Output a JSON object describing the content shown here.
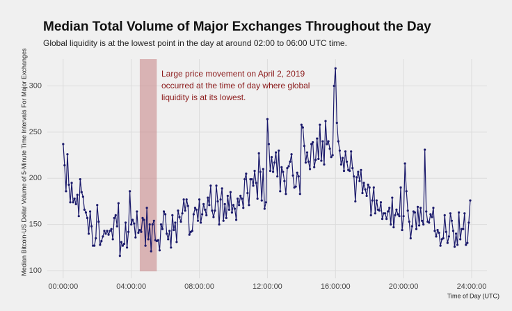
{
  "chart_data": {
    "type": "line",
    "title": "Median Total Volume of Major Exchanges Throughout the Day",
    "subtitle": "Global liquidity is at the lowest point in the day at around 02:00 to 06:00 UTC time.",
    "x_label": "Time of Day (UTC)",
    "y_label": "Median Bitcoin-US Dollar Volume of 5-Minute Time Intervals For Major Exchanges",
    "annotation": [
      "Large price movement on April 2, 2019",
      "occurred at the time of day where global",
      "liquidity is at its lowest."
    ],
    "highlight": [
      270,
      330
    ],
    "highlight_color": "#c98a8c",
    "annotation_color": "#8b1a1a",
    "grid": true,
    "xlim": [
      -56,
      1494
    ],
    "ylim": [
      91.7,
      329
    ],
    "xticks": [
      {
        "value": 0,
        "label": "00:00:00"
      },
      {
        "value": 240,
        "label": "04:00:00"
      },
      {
        "value": 480,
        "label": "08:00:00"
      },
      {
        "value": 720,
        "label": "12:00:00"
      },
      {
        "value": 960,
        "label": "16:00:00"
      },
      {
        "value": 1200,
        "label": "20:00:00"
      },
      {
        "value": 1440,
        "label": "24:00:00"
      }
    ],
    "yticks": [
      100,
      150,
      200,
      250,
      300
    ],
    "series": [
      {
        "name": "Median volume",
        "color": "#1b1a6b",
        "x": [
          0,
          5,
          10,
          15,
          20,
          25,
          30,
          35,
          40,
          45,
          50,
          55,
          60,
          65,
          70,
          75,
          80,
          85,
          90,
          95,
          100,
          105,
          110,
          115,
          120,
          125,
          130,
          135,
          140,
          145,
          150,
          155,
          160,
          165,
          170,
          175,
          180,
          185,
          190,
          195,
          200,
          205,
          210,
          215,
          220,
          225,
          230,
          235,
          240,
          245,
          250,
          255,
          260,
          265,
          270,
          275,
          280,
          285,
          290,
          295,
          300,
          305,
          310,
          315,
          320,
          325,
          330,
          335,
          340,
          345,
          350,
          355,
          360,
          365,
          370,
          375,
          380,
          385,
          390,
          395,
          400,
          405,
          410,
          415,
          420,
          425,
          430,
          435,
          440,
          445,
          450,
          455,
          460,
          465,
          470,
          475,
          480,
          485,
          490,
          495,
          500,
          505,
          510,
          515,
          520,
          525,
          530,
          535,
          540,
          545,
          550,
          555,
          560,
          565,
          570,
          575,
          580,
          585,
          590,
          595,
          600,
          605,
          610,
          615,
          620,
          625,
          630,
          635,
          640,
          645,
          650,
          655,
          660,
          665,
          670,
          675,
          680,
          685,
          690,
          695,
          700,
          705,
          710,
          715,
          720,
          725,
          730,
          735,
          740,
          745,
          750,
          755,
          760,
          765,
          770,
          775,
          780,
          785,
          790,
          795,
          800,
          805,
          810,
          815,
          820,
          825,
          830,
          835,
          840,
          845,
          850,
          855,
          860,
          865,
          870,
          875,
          880,
          885,
          890,
          895,
          900,
          905,
          910,
          915,
          920,
          925,
          930,
          935,
          940,
          945,
          950,
          955,
          960,
          965,
          970,
          975,
          980,
          985,
          990,
          995,
          1000,
          1005,
          1010,
          1015,
          1020,
          1025,
          1030,
          1035,
          1040,
          1045,
          1050,
          1055,
          1060,
          1065,
          1070,
          1075,
          1080,
          1085,
          1090,
          1095,
          1100,
          1105,
          1110,
          1115,
          1120,
          1125,
          1130,
          1135,
          1140,
          1145,
          1150,
          1155,
          1160,
          1165,
          1170,
          1175,
          1180,
          1185,
          1190,
          1195,
          1200,
          1205,
          1210,
          1215,
          1220,
          1225,
          1230,
          1235,
          1240,
          1245,
          1250,
          1255,
          1260,
          1265,
          1270,
          1275,
          1280,
          1285,
          1290,
          1295,
          1300,
          1305,
          1310,
          1315,
          1320,
          1325,
          1330,
          1335,
          1340,
          1345,
          1350,
          1355,
          1360,
          1365,
          1370,
          1375,
          1380,
          1385,
          1390,
          1395,
          1400,
          1405,
          1410,
          1415,
          1420,
          1425,
          1430,
          1435
        ],
        "values": [
          237,
          214,
          186,
          226,
          193,
          174,
          195,
          174,
          178,
          172,
          182,
          159,
          199,
          185,
          180,
          166,
          163,
          157,
          140,
          164,
          148,
          127,
          127,
          135,
          171,
          153,
          128,
          132,
          137,
          143,
          140,
          143,
          139,
          143,
          145,
          134,
          157,
          160,
          148,
          173,
          116,
          131,
          127,
          129,
          152,
          125,
          142,
          186,
          150,
          155,
          151,
          136,
          164,
          141,
          144,
          142,
          157,
          155,
          127,
          168,
          134,
          150,
          121,
          150,
          154,
          133,
          132,
          133,
          122,
          150,
          145,
          164,
          161,
          140,
          134,
          143,
          125,
          160,
          144,
          152,
          131,
          165,
          158,
          153,
          162,
          177,
          165,
          177,
          170,
          139,
          142,
          143,
          161,
          168,
          166,
          154,
          177,
          152,
          161,
          172,
          166,
          160,
          179,
          171,
          192,
          165,
          158,
          165,
          192,
          175,
          150,
          177,
          189,
          154,
          172,
          157,
          181,
          166,
          185,
          163,
          171,
          167,
          155,
          178,
          171,
          181,
          178,
          168,
          199,
          205,
          184,
          171,
          199,
          199,
          192,
          208,
          195,
          178,
          227,
          207,
          176,
          210,
          167,
          174,
          264,
          237,
          208,
          223,
          207,
          217,
          228,
          202,
          230,
          186,
          212,
          207,
          197,
          183,
          211,
          213,
          218,
          226,
          203,
          190,
          191,
          206,
          202,
          183,
          258,
          255,
          235,
          217,
          228,
          218,
          210,
          237,
          239,
          212,
          220,
          243,
          221,
          258,
          219,
          240,
          215,
          262,
          237,
          240,
          232,
          223,
          225,
          300,
          319,
          260,
          240,
          230,
          215,
          222,
          208,
          229,
          218,
          209,
          208,
          229,
          211,
          202,
          175,
          201,
          207,
          197,
          209,
          184,
          195,
          188,
          181,
          193,
          190,
          160,
          176,
          190,
          162,
          176,
          166,
          165,
          174,
          156,
          162,
          162,
          156,
          164,
          168,
          150,
          179,
          147,
          160,
          166,
          161,
          159,
          190,
          144,
          159,
          216,
          186,
          165,
          153,
          135,
          148,
          164,
          163,
          145,
          169,
          149,
          168,
          154,
          150,
          231,
          164,
          153,
          152,
          161,
          158,
          168,
          143,
          137,
          144,
          141,
          127,
          134,
          135,
          160,
          142,
          130,
          137,
          162,
          154,
          143,
          126,
          140,
          128,
          163,
          134,
          145,
          145,
          162,
          128,
          130,
          152,
          176
        ]
      }
    ]
  }
}
